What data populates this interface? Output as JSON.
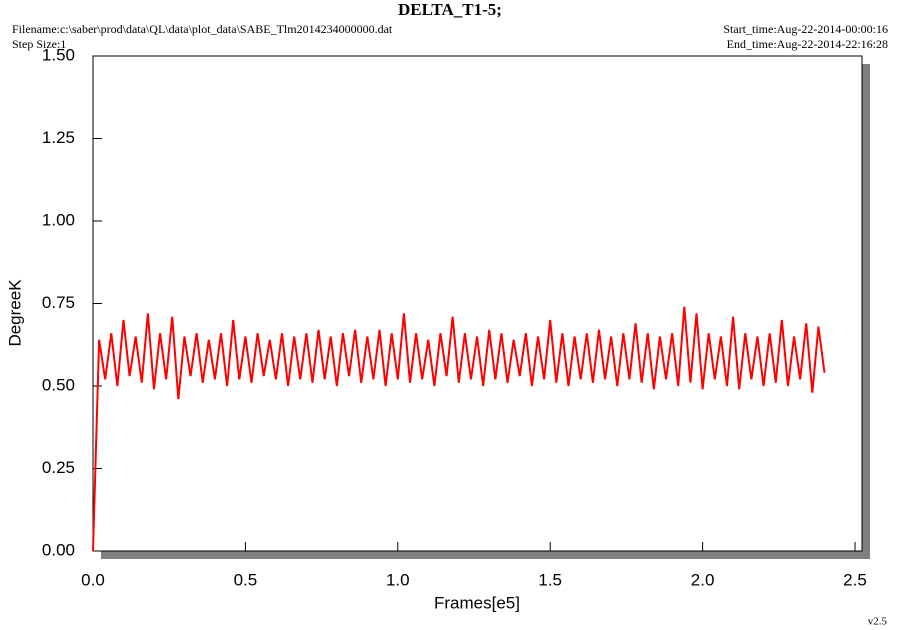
{
  "chart_data": {
    "type": "line",
    "title": "DELTA_T1-5;",
    "filename": "Filename:c:\\saber\\prod\\data\\QL\\data\\plot_data\\SABE_Tlm2014234000000.dat",
    "step_size": "Step Size:1",
    "start_time": "Start_time:Aug-22-2014-00:00:16",
    "end_time": "End_time:Aug-22-2014-22:16:28",
    "version": "v2.5",
    "x_label": "Frames[e5]",
    "y_label": "DegreeK",
    "xlim": [
      0,
      2.5
    ],
    "ylim": [
      0,
      1.5
    ],
    "xticks": [
      {
        "value": 0,
        "label": "0.0"
      },
      0.5,
      {
        "value": 1,
        "label": "1.0"
      },
      1.5,
      {
        "value": 2,
        "label": "2.0"
      },
      2.5
    ],
    "yticks": [
      {
        "value": 0,
        "label": "0.00"
      },
      {
        "value": 0.25,
        "label": "0.25"
      },
      {
        "value": 0.5,
        "label": "0.50"
      },
      {
        "value": 0.75,
        "label": "0.75"
      },
      {
        "value": 1,
        "label": "1.00"
      },
      {
        "value": 1.25,
        "label": "1.25"
      },
      {
        "value": 1.5,
        "label": "1.50"
      }
    ],
    "x": [
      0,
      0.02,
      0.04,
      0.06,
      0.08,
      0.1,
      0.12,
      0.14,
      0.16,
      0.18,
      0.2,
      0.22,
      0.24,
      0.26,
      0.28,
      0.3,
      0.32,
      0.34,
      0.36,
      0.38,
      0.4,
      0.42,
      0.44,
      0.46,
      0.48,
      0.5,
      0.52,
      0.54,
      0.56,
      0.58,
      0.6,
      0.62,
      0.64,
      0.66,
      0.68,
      0.7,
      0.72,
      0.74,
      0.76,
      0.78,
      0.8,
      0.82,
      0.84,
      0.86,
      0.88,
      0.9,
      0.92,
      0.94,
      0.96,
      0.98,
      1,
      1.02,
      1.04,
      1.06,
      1.08,
      1.1,
      1.12,
      1.14,
      1.16,
      1.18,
      1.2,
      1.22,
      1.24,
      1.26,
      1.28,
      1.3,
      1.32,
      1.34,
      1.36,
      1.38,
      1.4,
      1.42,
      1.44,
      1.46,
      1.48,
      1.5,
      1.52,
      1.54,
      1.56,
      1.58,
      1.6,
      1.62,
      1.64,
      1.66,
      1.68,
      1.7,
      1.72,
      1.74,
      1.76,
      1.78,
      1.8,
      1.82,
      1.84,
      1.86,
      1.88,
      1.9,
      1.92,
      1.94,
      1.96,
      1.98,
      2,
      2.02,
      2.04,
      2.06,
      2.08,
      2.1,
      2.12,
      2.14,
      2.16,
      2.18,
      2.2,
      2.22,
      2.24,
      2.26,
      2.28,
      2.3,
      2.32,
      2.34,
      2.36,
      2.38,
      2.4
    ],
    "series": [
      {
        "name": "DELTA_T1-5",
        "color": "#ff0000",
        "values": [
          0,
          0.64,
          0.52,
          0.66,
          0.5,
          0.7,
          0.53,
          0.65,
          0.51,
          0.72,
          0.49,
          0.66,
          0.52,
          0.71,
          0.46,
          0.65,
          0.53,
          0.66,
          0.51,
          0.64,
          0.52,
          0.66,
          0.5,
          0.7,
          0.52,
          0.65,
          0.51,
          0.66,
          0.53,
          0.64,
          0.52,
          0.66,
          0.5,
          0.65,
          0.52,
          0.66,
          0.51,
          0.67,
          0.52,
          0.65,
          0.5,
          0.66,
          0.53,
          0.67,
          0.51,
          0.65,
          0.52,
          0.67,
          0.5,
          0.66,
          0.52,
          0.72,
          0.51,
          0.66,
          0.52,
          0.64,
          0.5,
          0.66,
          0.53,
          0.71,
          0.51,
          0.66,
          0.52,
          0.65,
          0.5,
          0.67,
          0.52,
          0.66,
          0.51,
          0.64,
          0.53,
          0.66,
          0.5,
          0.65,
          0.52,
          0.7,
          0.51,
          0.66,
          0.5,
          0.65,
          0.52,
          0.66,
          0.51,
          0.67,
          0.52,
          0.65,
          0.5,
          0.66,
          0.52,
          0.69,
          0.51,
          0.66,
          0.49,
          0.65,
          0.52,
          0.66,
          0.5,
          0.74,
          0.51,
          0.72,
          0.49,
          0.66,
          0.52,
          0.65,
          0.5,
          0.71,
          0.49,
          0.66,
          0.52,
          0.65,
          0.5,
          0.66,
          0.51,
          0.7,
          0.5,
          0.65,
          0.52,
          0.69,
          0.48,
          0.68,
          0.54
        ]
      }
    ]
  }
}
